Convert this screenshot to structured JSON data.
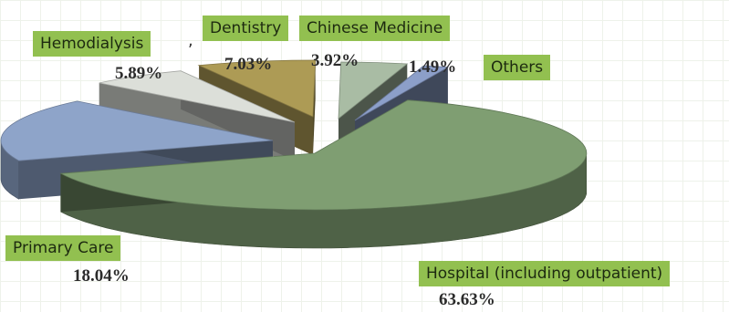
{
  "chart_data": {
    "type": "pie",
    "style": "3d-exploded",
    "title": "",
    "slices": [
      {
        "label": "Hospital (including outpatient)",
        "value": 63.63,
        "value_label": "63.63%",
        "color": "#7f9e72"
      },
      {
        "label": "Primary Care",
        "value": 18.04,
        "value_label": "18.04%",
        "color": "#8ea4c9"
      },
      {
        "label": "Hemodialysis",
        "value": 5.89,
        "value_label": "5.89%",
        "color": "#dcdfd9"
      },
      {
        "label": "Dentistry",
        "value": 7.03,
        "value_label": "7.03%",
        "color": "#ad9b55"
      },
      {
        "label": "Chinese Medicine",
        "value": 3.92,
        "value_label": "3.92%",
        "color": "#a9bca4"
      },
      {
        "label": "Others",
        "value": 1.49,
        "value_label": "1.49%",
        "color": "#8c9fc9"
      }
    ],
    "label_box_color": "#92c050",
    "separator_mark": ","
  }
}
